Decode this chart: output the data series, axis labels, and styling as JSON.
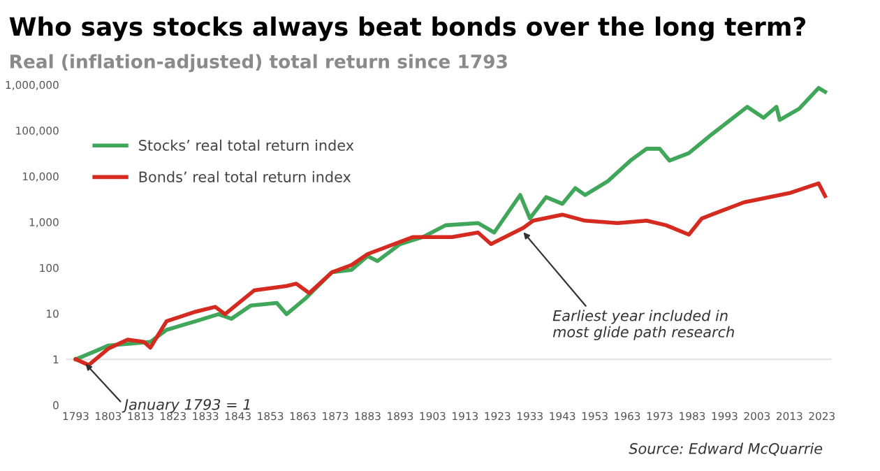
{
  "chart_data": {
    "type": "line",
    "title": "Who says stocks always beat bonds over the long term?",
    "subtitle": "Real (inflation-adjusted) total return since 1793",
    "log": "y",
    "xlim": [
      1790,
      2026
    ],
    "xticks": [
      1793,
      1803,
      1813,
      1823,
      1833,
      1843,
      1853,
      1863,
      1873,
      1883,
      1893,
      1903,
      1913,
      1923,
      1933,
      1943,
      1953,
      1963,
      1973,
      1983,
      1993,
      2003,
      2013,
      2023
    ],
    "ylim": [
      0.1,
      1000000
    ],
    "yticks": [
      {
        "value": 0.1,
        "label": "0"
      },
      1,
      10,
      100,
      {
        "value": 1000,
        "label": "1,000"
      },
      {
        "value": 10000,
        "label": "10,000"
      },
      {
        "value": 100000,
        "label": "100,000"
      },
      {
        "value": 1000000,
        "label": "1,000,000"
      }
    ],
    "grid": false,
    "legend": "top left",
    "marker": "none",
    "line_style": "solid",
    "ref_lines": [
      {
        "axis": "y",
        "value": 1,
        "color": "#e6e6e6"
      }
    ],
    "series": [
      {
        "name": "Stocks’ real total return index",
        "color": "#3fa65a",
        "x": [
          1793,
          1799,
          1803,
          1816,
          1821,
          1830,
          1837,
          1841,
          1847,
          1855,
          1858,
          1864,
          1872,
          1878,
          1883,
          1886,
          1893,
          1900,
          1907,
          1917,
          1922,
          1930,
          1933,
          1938,
          1943,
          1947,
          1950,
          1957,
          1964,
          1969,
          1973,
          1976,
          1982,
          1989,
          2000,
          2005,
          2009,
          2010,
          2016,
          2022,
          2024
        ],
        "values": [
          1,
          1.5,
          2,
          2.4,
          4.4,
          6.8,
          9.7,
          7.7,
          15,
          17,
          9.7,
          22,
          80,
          90,
          180,
          140,
          330,
          470,
          850,
          950,
          590,
          3900,
          1200,
          3500,
          2500,
          5500,
          3900,
          7800,
          22000,
          40000,
          40000,
          22000,
          32000,
          82000,
          330000,
          190000,
          330000,
          170000,
          300000,
          850000,
          700000
        ]
      },
      {
        "name": "Bonds’ real total return index",
        "color": "#d42a20",
        "x": [
          1793,
          1797,
          1803,
          1809,
          1814,
          1816,
          1821,
          1830,
          1836,
          1839,
          1848,
          1858,
          1861,
          1865,
          1872,
          1878,
          1883,
          1897,
          1909,
          1917,
          1921,
          1931,
          1934,
          1943,
          1950,
          1960,
          1969,
          1975,
          1982,
          1986,
          1999,
          2013,
          2022,
          2024
        ],
        "values": [
          1,
          0.75,
          1.7,
          2.7,
          2.4,
          1.8,
          6.8,
          11,
          14,
          9.7,
          32,
          40,
          45,
          28,
          80,
          115,
          200,
          470,
          470,
          590,
          330,
          750,
          1070,
          1450,
          1070,
          950,
          1070,
          850,
          530,
          1200,
          2700,
          4300,
          7000,
          3700
        ]
      }
    ],
    "annotations": [
      {
        "text": "January 1793 = 1",
        "x": 1796,
        "y": 0.8
      },
      {
        "text": "Earliest year included in\nmost glide path research",
        "x": 1931,
        "y": 600
      },
      "Source: Edward McQuarrie"
    ]
  }
}
